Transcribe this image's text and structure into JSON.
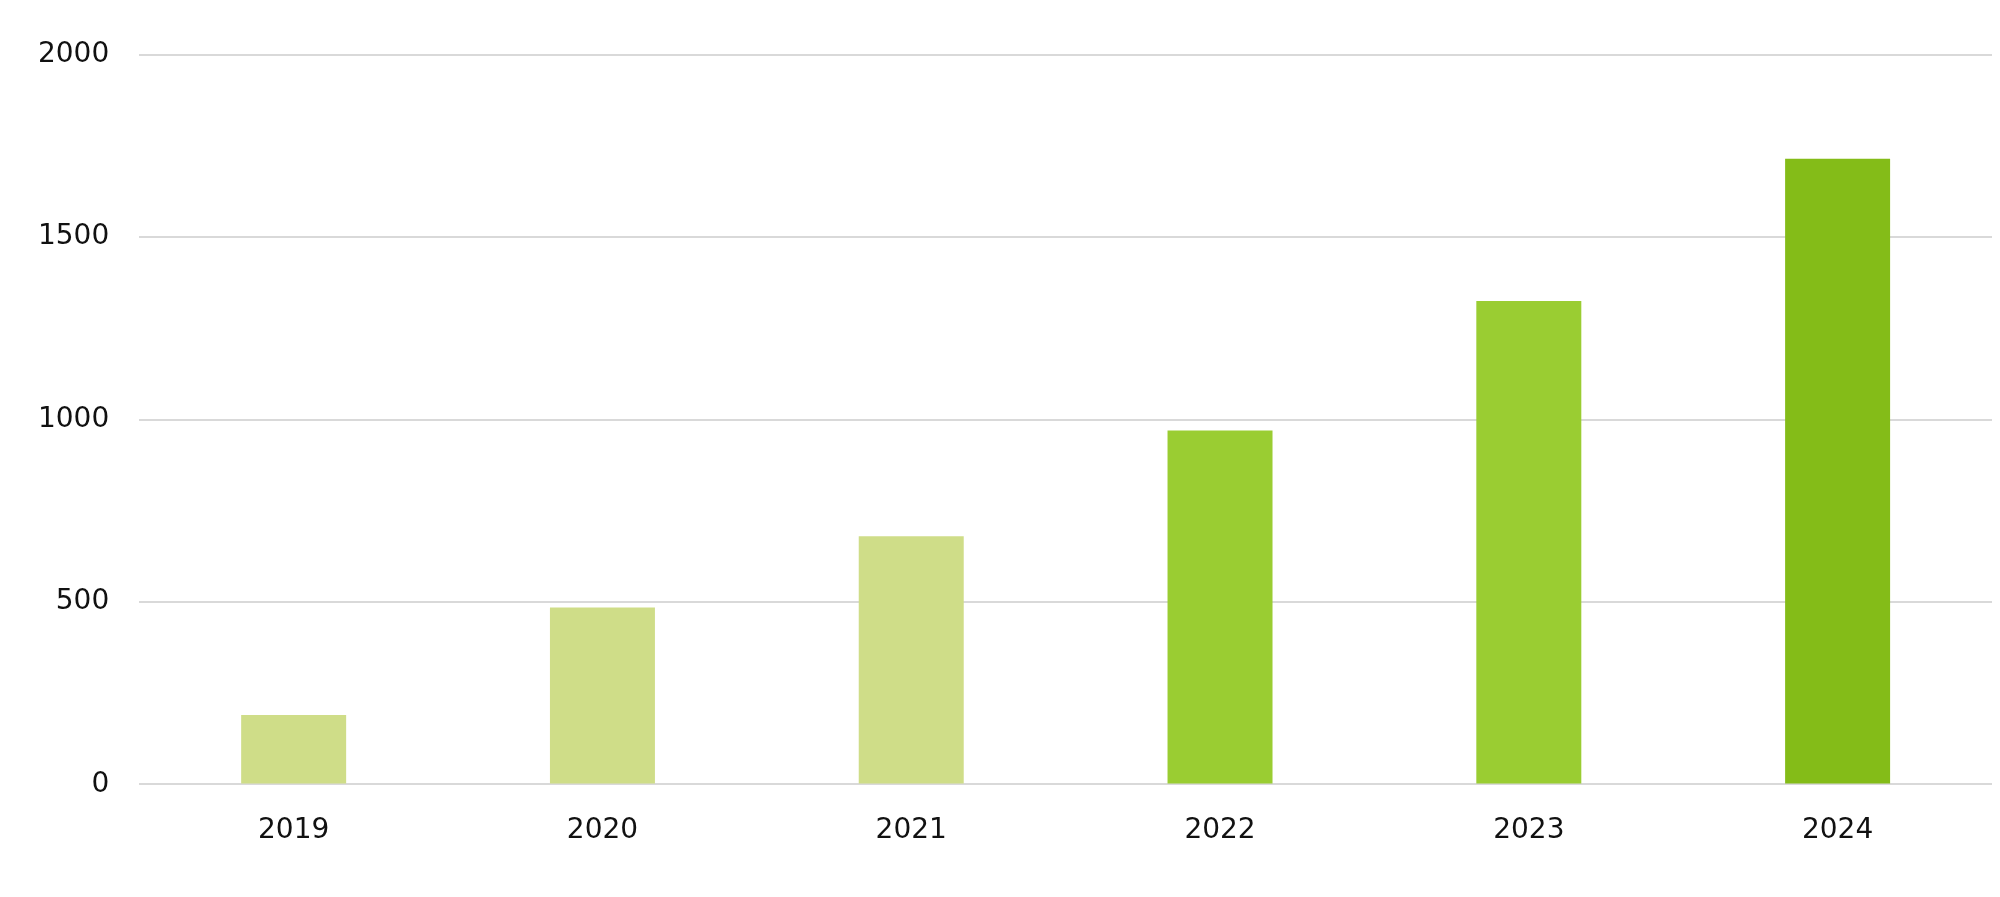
{
  "chart_data": {
    "type": "bar",
    "categories": [
      "2019",
      "2020",
      "2021",
      "2022",
      "2023",
      "2024"
    ],
    "values": [
      190,
      485,
      680,
      970,
      1325,
      1715
    ],
    "colors": [
      "#cfdd88",
      "#cfdd88",
      "#cfdd88",
      "#9acd32",
      "#9acd32",
      "#84bc18"
    ],
    "ylim": [
      0,
      2000
    ],
    "yticks": [
      0,
      500,
      1000,
      1500,
      2000
    ],
    "grid": "y"
  }
}
